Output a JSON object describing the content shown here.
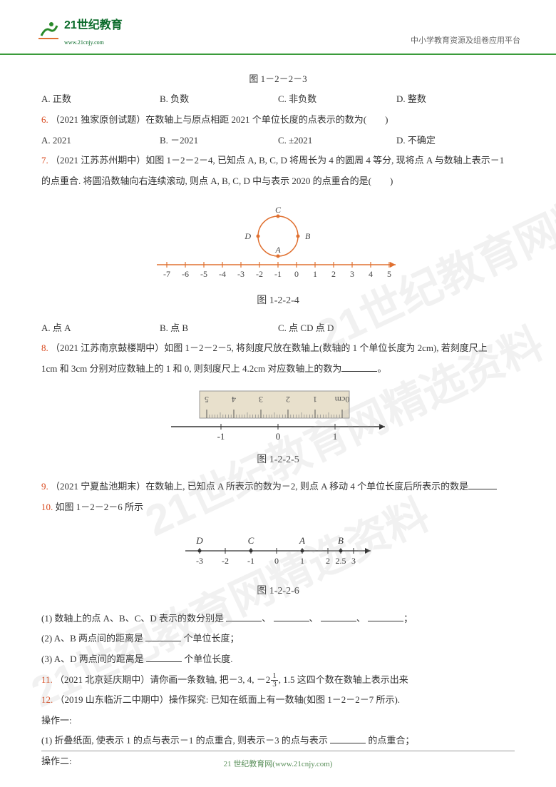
{
  "header": {
    "logo_main": "21世纪教育",
    "logo_sub": "www.21cnjy.com",
    "right_text": "中小学教育资源及组卷应用平台"
  },
  "watermark": "21世纪教育网精选资料",
  "fig_1_2_2_3": "图 1－2－2－3",
  "q5": {
    "opts": {
      "a": "A. 正数",
      "b": "B. 负数",
      "c": "C. 非负数",
      "d": "D. 整数"
    }
  },
  "q6": {
    "num": "6.",
    "text": "（2021 独家原创试题）在数轴上与原点相距 2021 个单位长度的点表示的数为(　　)",
    "opts": {
      "a": "A. 2021",
      "b": "B. －2021",
      "c": "C. ±2021",
      "d": "D. 不确定"
    }
  },
  "q7": {
    "num": "7.",
    "text1": "（2021 江苏苏州期中）如图 1－2－2－4, 已知点 A, B, C, D 将周长为 4 的圆周 4 等分, 现将点 A 与数轴上表示－1",
    "text2": "的点重合. 将圆沿数轴向右连续滚动, 则点 A, B, C, D 中与表示 2020 的点重合的是(　　)",
    "fig_nodes": {
      "A": "A",
      "B": "B",
      "C": "C",
      "D": "D"
    },
    "axis_labels": [
      "-7",
      "-6",
      "-5",
      "-4",
      "-3",
      "-2",
      "-1",
      "0",
      "1",
      "2",
      "3",
      "4",
      "5"
    ],
    "fig_label": "图 1-2-2-4",
    "opts": {
      "a": "A. 点 A",
      "b": "B. 点 B",
      "c": "C. 点 CD 点 D",
      "d": ""
    }
  },
  "q8": {
    "num": "8.",
    "text1": "（2021 江苏南京鼓楼期中）如图 1－2－2－5, 将刻度尺放在数轴上(数轴的 1 个单位长度为 2cm), 若刻度尺上",
    "text2_a": "1cm 和 3cm 分别对应数轴上的 1 和 0, 则刻度尺上 ",
    "text2_b": "4.2",
    "text2_c": "cm 对应数轴上的数为",
    "text2_d": "。",
    "ruler_labels": [
      "0cm",
      "1",
      "2",
      "3",
      "4",
      "5"
    ],
    "axis_labels": [
      "-1",
      "0",
      "1"
    ],
    "fig_label": "图 1-2-2-5"
  },
  "q9": {
    "num": "9.",
    "text_a": "（2021 宁夏盐池期末）在数轴上, 已知点 A 所表示的数为－2, 则点 A 移动 4 个单位长度后所表示的数是",
    "text_b": ""
  },
  "q10": {
    "num": "10.",
    "text": "如图 1－2－2－6 所示",
    "points": {
      "D": "D",
      "C": "C",
      "A": "A",
      "B": "B"
    },
    "axis_labels": [
      "-3",
      "-2",
      "-1",
      "0",
      "1",
      "2",
      "2.5",
      "3"
    ],
    "fig_label": "图 1-2-2-6",
    "sub1_a": "(1) 数轴上的点 A、B、C、D 表示的数分别是",
    "sub1_sep": "、",
    "sub1_end": "；",
    "sub2_a": "(2) A、B 两点间的距离是",
    "sub2_b": "个单位长度；",
    "sub3_a": "(3) A、D 两点间的距离是",
    "sub3_b": "个单位长度."
  },
  "q11": {
    "num": "11.",
    "text_a": "（2021 北京延庆期中）请你画一条数轴, 把－3, 4, －2",
    "frac_n": "1",
    "frac_d": "3",
    "text_b": ", 1.5 这四个数在数轴上表示出来"
  },
  "q12": {
    "num": "12.",
    "text": "（2019 山东临沂二中期中）操作探究: 已知在纸面上有一数轴(如图 1－2－2－7 所示).",
    "op1_label": "操作一:",
    "op1_a": "(1) 折叠纸面, 使表示 1 的点与表示－1 的点重合, 则表示－3 的点与表示",
    "op1_b": "的点重合；",
    "op2_label": "操作二:"
  },
  "footer": "21 世纪教育网(www.21cnjy.com)",
  "colors": {
    "qnum": "#d94a1f",
    "axis": "#e07030",
    "header_green": "#3a9b3a",
    "ruler_bg": "#e8e0cc",
    "ruler_border": "#999"
  }
}
